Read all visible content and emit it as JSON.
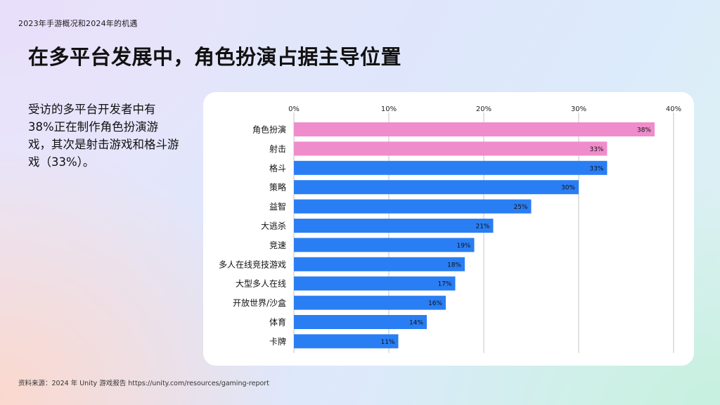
{
  "breadcrumb": "2023年手游概况和2024年的机遇",
  "title": "在多平台发展中，角色扮演占据主导位置",
  "summary": "受访的多平台开发者中有38%正在制作角色扮演游戏，其次是射击游戏和格斗游戏（33%）。",
  "source": "资料来源：2024 年 Unity 游戏报告 https://unity.com/resources/gaming-report",
  "colors": {
    "highlight": "#ef8ccb",
    "bar": "#2a7ef3",
    "grid": "#b8b8b8",
    "card": "#ffffff"
  },
  "chart_data": {
    "type": "bar",
    "orientation": "horizontal",
    "title": "",
    "xlabel": "",
    "ylabel": "",
    "xlim": [
      0,
      40
    ],
    "x_ticks": [
      "0%",
      "10%",
      "20%",
      "30%",
      "40%"
    ],
    "x_axis_position": "top",
    "grid": true,
    "categories": [
      "角色扮演",
      "射击",
      "格斗",
      "策略",
      "益智",
      "大逃杀",
      "竞速",
      "多人在线竞技游戏",
      "大型多人在线",
      "开放世界/沙盒",
      "体育",
      "卡牌"
    ],
    "values": [
      38,
      33,
      33,
      30,
      25,
      21,
      19,
      18,
      17,
      16,
      14,
      11
    ],
    "value_labels": [
      "38%",
      "33%",
      "33%",
      "30%",
      "25%",
      "21%",
      "19%",
      "18%",
      "17%",
      "16%",
      "14%",
      "11%"
    ],
    "highlighted": [
      "角色扮演",
      "射击"
    ]
  }
}
